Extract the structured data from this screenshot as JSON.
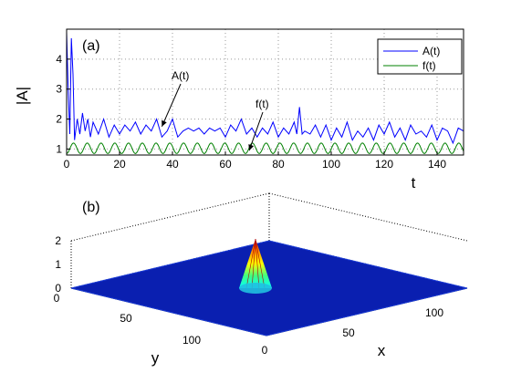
{
  "chart_data": [
    {
      "type": "line",
      "panel_label": "(a)",
      "xlabel": "t",
      "ylabel": "|A|",
      "xlim": [
        0,
        150
      ],
      "ylim": [
        0.8,
        5
      ],
      "xticks": [
        "0",
        "20",
        "40",
        "60",
        "80",
        "100",
        "120",
        "140"
      ],
      "yticks": [
        "1",
        "2",
        "3",
        "4"
      ],
      "grid": true,
      "legend": {
        "placement": "top-right",
        "entries": [
          "A(t)",
          "f(t)"
        ]
      },
      "series": [
        {
          "name": "A(t)",
          "color": "#0000ff",
          "x": [
            0,
            0.6,
            1.2,
            1.8,
            2.4,
            3,
            4,
            5,
            6,
            7,
            8,
            9,
            10,
            12,
            14,
            16,
            18,
            20,
            22,
            24,
            26,
            28,
            30,
            32,
            34,
            36,
            38,
            40,
            42,
            44,
            46,
            48,
            50,
            52,
            54,
            56,
            58,
            60,
            62,
            64,
            66,
            68,
            70,
            72,
            74,
            76,
            78,
            80,
            82,
            84,
            86,
            87,
            88,
            89,
            90,
            92,
            94,
            96,
            98,
            100,
            102,
            104,
            106,
            108,
            110,
            112,
            114,
            116,
            118,
            120,
            122,
            124,
            126,
            128,
            130,
            132,
            134,
            136,
            138,
            140,
            142,
            144,
            146,
            148,
            150
          ],
          "values": [
            4.9,
            3.0,
            1.5,
            4.7,
            3.5,
            1.3,
            2.0,
            1.5,
            2.2,
            1.6,
            2.0,
            1.4,
            1.9,
            1.5,
            2.0,
            1.4,
            1.8,
            1.5,
            1.8,
            1.6,
            1.9,
            1.5,
            1.8,
            1.6,
            2.0,
            1.4,
            1.6,
            2.0,
            1.4,
            1.6,
            1.7,
            1.6,
            1.7,
            1.5,
            1.7,
            1.6,
            1.7,
            1.4,
            1.8,
            1.6,
            2.0,
            1.5,
            1.7,
            1.4,
            1.7,
            1.5,
            1.9,
            1.4,
            1.7,
            1.5,
            1.9,
            1.5,
            2.4,
            1.5,
            1.6,
            1.5,
            1.8,
            1.4,
            1.8,
            1.3,
            1.7,
            1.4,
            1.9,
            1.3,
            1.6,
            1.4,
            1.7,
            1.3,
            1.8,
            1.5,
            1.9,
            1.4,
            1.7,
            1.3,
            1.8,
            1.5,
            1.6,
            1.4,
            1.8,
            1.3,
            1.7,
            1.6,
            1.2,
            1.7,
            1.6
          ]
        },
        {
          "name": "f(t)",
          "color": "#008000",
          "amplitude_min": 0.85,
          "amplitude_max": 1.2,
          "period": 5.2,
          "x_range": [
            0,
            150
          ]
        }
      ],
      "annotations": [
        {
          "text": "A(t)",
          "arrow_to": [
            36,
            1.75
          ]
        },
        {
          "text": "f(t)",
          "arrow_to": [
            69,
            0.95
          ]
        }
      ]
    },
    {
      "type": "surface",
      "panel_label": "(b)",
      "xlabel": "x",
      "ylabel": "y",
      "zticks": [
        "0",
        "1",
        "2"
      ],
      "xticks": [
        "0",
        "50",
        "100"
      ],
      "yticks": [
        "0",
        "50",
        "100"
      ],
      "peak": {
        "x": 60,
        "y": 60,
        "z": 2.0
      },
      "grid": true
    }
  ]
}
